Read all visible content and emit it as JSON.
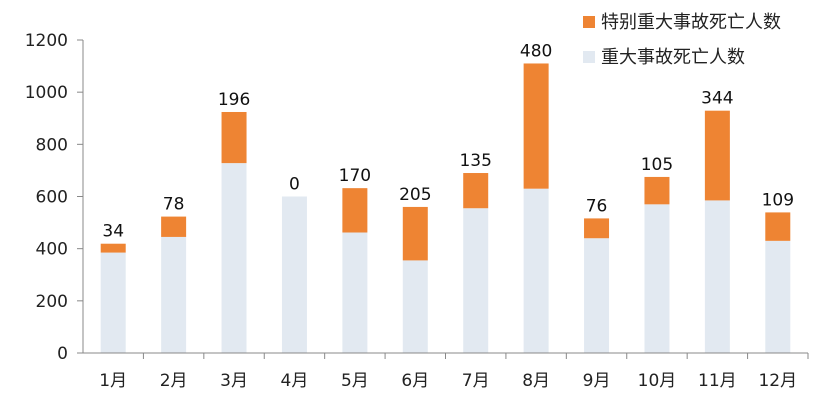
{
  "chart_data": {
    "type": "bar",
    "stacked": true,
    "categories": [
      "1月",
      "2月",
      "3月",
      "4月",
      "5月",
      "6月",
      "7月",
      "8月",
      "9月",
      "10月",
      "11月",
      "12月"
    ],
    "series": [
      {
        "name": "重大事故死亡人数",
        "color": "#e2e9f1",
        "values": [
          385,
          445,
          728,
          600,
          462,
          355,
          555,
          630,
          440,
          570,
          585,
          430
        ]
      },
      {
        "name": "特别重大事故死亡人数",
        "color": "#ee8433",
        "values": [
          34,
          78,
          196,
          0,
          170,
          205,
          135,
          480,
          76,
          105,
          344,
          109
        ]
      }
    ],
    "data_labels": [
      "34",
      "78",
      "196",
      "0",
      "170",
      "205",
      "135",
      "480",
      "76",
      "105",
      "344",
      "109"
    ],
    "y_ticks": [
      "0",
      "200",
      "400",
      "600",
      "800",
      "1000",
      "1200"
    ],
    "ylim": [
      0,
      1200
    ],
    "grid": false,
    "legend_position": "top-right",
    "legend_order": [
      "特别重大事故死亡人数",
      "重大事故死亡人数"
    ]
  }
}
